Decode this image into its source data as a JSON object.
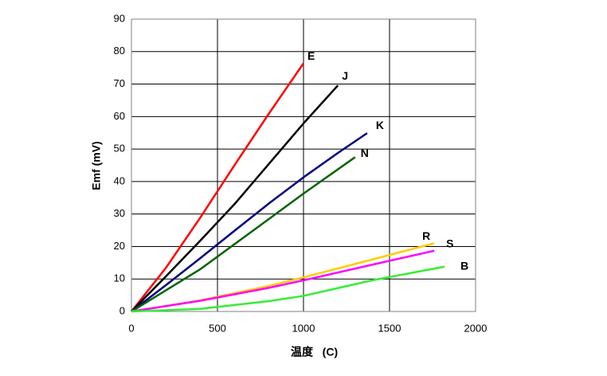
{
  "chart_data": {
    "type": "line",
    "xlabel": "温度   (C)",
    "ylabel": "Emf (mV)",
    "xlim": [
      0,
      2000
    ],
    "xticks": [
      0,
      500,
      1000,
      1500,
      2000
    ],
    "ylim": [
      0,
      90
    ],
    "yticks": [
      0,
      10,
      20,
      30,
      40,
      50,
      60,
      70,
      80,
      90
    ],
    "grid": true,
    "series": [
      {
        "name": "E",
        "color": "#ff0000",
        "x": [
          0,
          200,
          400,
          600,
          800,
          1000
        ],
        "values": [
          0,
          13.4,
          28.9,
          45.1,
          61.0,
          76.4
        ]
      },
      {
        "name": "J",
        "color": "#000000",
        "x": [
          0,
          200,
          400,
          600,
          800,
          1000,
          1200
        ],
        "values": [
          0,
          10.8,
          21.8,
          33.1,
          45.5,
          57.9,
          69.6
        ]
      },
      {
        "name": "K",
        "color": "#000080",
        "x": [
          0,
          200,
          400,
          600,
          800,
          1000,
          1200,
          1370
        ],
        "values": [
          0,
          8.1,
          16.4,
          24.9,
          33.3,
          41.3,
          48.8,
          54.9
        ]
      },
      {
        "name": "N",
        "color": "#006400",
        "x": [
          0,
          400,
          800,
          1000,
          1300
        ],
        "values": [
          0,
          13.0,
          28.5,
          36.3,
          47.5
        ]
      },
      {
        "name": "R",
        "color": "#ffcc00",
        "x": [
          0,
          400,
          800,
          1000,
          1400,
          1760
        ],
        "values": [
          0,
          3.4,
          7.9,
          10.5,
          16.0,
          21.0
        ]
      },
      {
        "name": "S",
        "color": "#ff00ff",
        "x": [
          0,
          400,
          800,
          1000,
          1400,
          1760
        ],
        "values": [
          0,
          3.3,
          7.3,
          9.6,
          14.4,
          18.7
        ]
      },
      {
        "name": "B",
        "color": "#33ee33",
        "x": [
          0,
          400,
          800,
          1000,
          1400,
          1820
        ],
        "values": [
          0,
          0.8,
          3.2,
          4.8,
          9.6,
          13.8
        ]
      }
    ]
  }
}
